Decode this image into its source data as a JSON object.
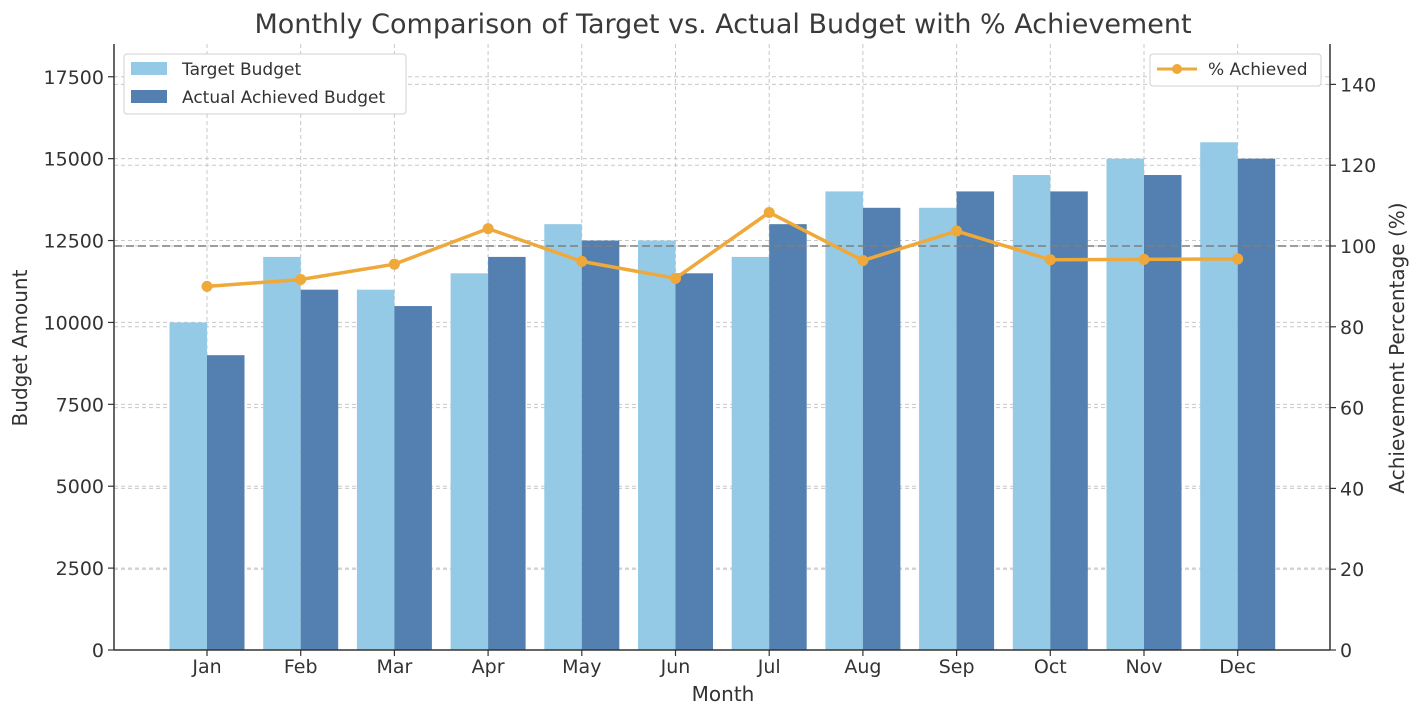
{
  "chart_data": {
    "type": "bar",
    "title": "Monthly Comparison of Target vs. Actual Budget with % Achievement",
    "xlabel": "Month",
    "ylabel": "Budget Amount",
    "y2label": "Achievement Percentage (%)",
    "categories": [
      "Jan",
      "Feb",
      "Mar",
      "Apr",
      "May",
      "Jun",
      "Jul",
      "Aug",
      "Sep",
      "Oct",
      "Nov",
      "Dec"
    ],
    "ylim": [
      0,
      18500
    ],
    "y2lim": [
      0,
      150
    ],
    "yticks": [
      "0",
      "2500",
      "5000",
      "7500",
      "10000",
      "12500",
      "15000",
      "17500"
    ],
    "y2ticks": [
      "0",
      "20",
      "40",
      "60",
      "80",
      "100",
      "120",
      "140"
    ],
    "reference_line_y2": 100,
    "grid": true,
    "series": [
      {
        "name": "Target Budget",
        "kind": "bar",
        "axis": "left",
        "color": "#95cae6",
        "values": [
          10000,
          12000,
          11000,
          11500,
          13000,
          12500,
          12000,
          14000,
          13500,
          14500,
          15000,
          15500
        ]
      },
      {
        "name": "Actual Achieved Budget",
        "kind": "bar",
        "axis": "left",
        "color": "#5380b0",
        "values": [
          9000,
          11000,
          10500,
          12000,
          12500,
          11500,
          13000,
          13500,
          14000,
          14000,
          14500,
          15000
        ]
      },
      {
        "name": "% Achieved",
        "kind": "line",
        "axis": "right",
        "color": "#efa93a",
        "values": [
          90.0,
          91.7,
          95.5,
          104.3,
          96.2,
          92.0,
          108.3,
          96.4,
          103.7,
          96.6,
          96.7,
          96.8
        ]
      }
    ],
    "legend_left_position": "upper-left",
    "legend_right_position": "upper-right"
  }
}
